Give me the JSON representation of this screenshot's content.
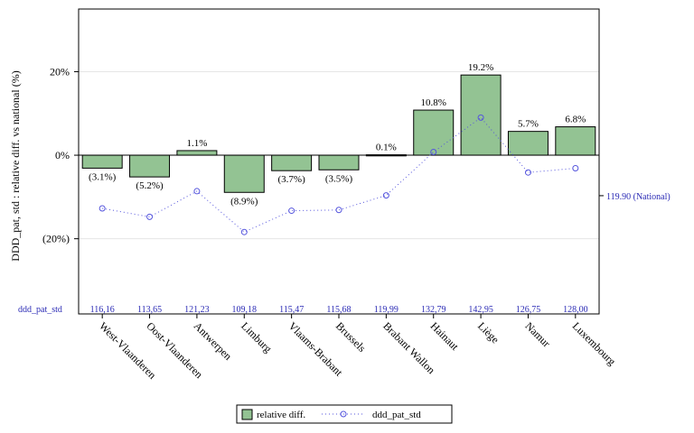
{
  "chart_data": {
    "type": "bar",
    "categories": [
      "West-Vlaanderen",
      "Oost-Vlaanderen",
      "Antwerpen",
      "Limburg",
      "Vlaams-Brabant",
      "Brussels",
      "Brabant Wallon",
      "Hainaut",
      "Liège",
      "Namur",
      "Luxembourg"
    ],
    "series": [
      {
        "name": "relative diff.",
        "type": "bar",
        "values": [
          -3.1,
          -5.2,
          1.1,
          -8.9,
          -3.7,
          -3.5,
          0.1,
          10.8,
          19.2,
          5.7,
          6.8
        ],
        "labels": [
          "(3.1%)",
          "(5.2%)",
          "1.1%",
          "(8.9%)",
          "(3.7%)",
          "(3.5%)",
          "0.1%",
          "10.8%",
          "19.2%",
          "5.7%",
          "6.8%"
        ],
        "color": "#93c393"
      },
      {
        "name": "ddd_pat_std",
        "type": "line",
        "values": [
          116.16,
          113.65,
          121.23,
          109.18,
          115.47,
          115.68,
          119.99,
          132.79,
          142.95,
          126.75,
          128.0
        ],
        "labels": [
          "116,16",
          "113,65",
          "121,23",
          "109,18",
          "115,47",
          "115,68",
          "119,99",
          "132,79",
          "142,95",
          "126,75",
          "128,00"
        ],
        "color": "#5555dd"
      }
    ],
    "ylabel": "DDD_pat, std : relative diff. vs national (%)",
    "yticks": [
      "20%",
      "0%",
      "(20%)"
    ],
    "ylim": [
      -38,
      35
    ],
    "secondary_ylim": [
      85,
      175
    ],
    "reference": {
      "value": 119.9,
      "label": "119.90 (National)"
    },
    "table_row_label": "ddd_pat_std",
    "grid": true,
    "legend_position": "bottom"
  }
}
